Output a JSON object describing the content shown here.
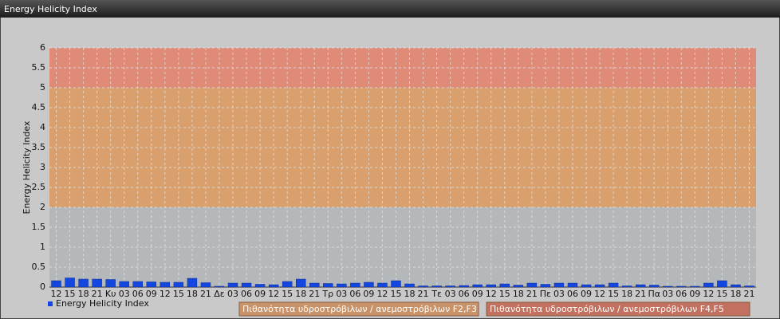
{
  "chart_data": {
    "type": "bar",
    "title": "Energy Helicity Index",
    "y_label": "Energy Helicity Index",
    "categories": [
      "12",
      "15",
      "18",
      "21",
      "Κυ",
      "03",
      "06",
      "09",
      "12",
      "15",
      "18",
      "21",
      "Δε",
      "03",
      "06",
      "09",
      "12",
      "15",
      "18",
      "21",
      "Τρ",
      "03",
      "06",
      "09",
      "12",
      "15",
      "18",
      "21",
      "Τε",
      "03",
      "06",
      "09",
      "12",
      "15",
      "18",
      "21",
      "Πε",
      "03",
      "06",
      "09",
      "12",
      "15",
      "18",
      "21",
      "Πα",
      "03",
      "06",
      "09",
      "12",
      "15",
      "18",
      "21"
    ],
    "series": [
      {
        "name": "Energy Helicity Index",
        "color": "#1447e0",
        "values": [
          0.16,
          0.23,
          0.2,
          0.2,
          0.19,
          0.14,
          0.14,
          0.13,
          0.12,
          0.12,
          0.22,
          0.11,
          0.02,
          0.1,
          0.1,
          0.07,
          0.06,
          0.14,
          0.2,
          0.1,
          0.09,
          0.08,
          0.1,
          0.12,
          0.1,
          0.16,
          0.08,
          0.03,
          0.03,
          0.03,
          0.04,
          0.06,
          0.06,
          0.08,
          0.05,
          0.1,
          0.07,
          0.1,
          0.1,
          0.06,
          0.06,
          0.1,
          0.03,
          0.06,
          0.05,
          0.02,
          0.02,
          0.02,
          0.1,
          0.16,
          0.06,
          0.03
        ]
      }
    ],
    "bands": [
      {
        "name": "Πιθανότητα υδροστρόβιλων / ανεμοστρόβιλων F2,F3",
        "from": 2,
        "to": 5,
        "color": "#d9a06e",
        "legend_color": "#c9936a"
      },
      {
        "name": "Πιθανότητα υδροστρόβιλων / ανεμοστρόβιλων F4,F5",
        "from": 5,
        "to": 6,
        "color": "#df8b77",
        "legend_color": "#c2705f"
      }
    ],
    "ylim": [
      0,
      6
    ],
    "yticks": [
      0,
      0.5,
      1,
      1.5,
      2,
      2.5,
      3,
      3.5,
      4,
      4.5,
      5,
      5.5,
      6
    ],
    "grid": true
  }
}
